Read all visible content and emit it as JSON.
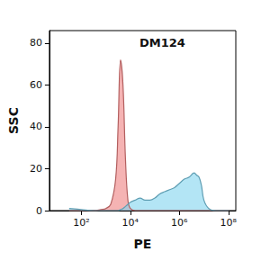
{
  "chart_data": {
    "type": "line",
    "title": "DM124",
    "x_label": "PE",
    "y_label": "SSC",
    "x": [
      32,
      100,
      316,
      631,
      1000,
      1585,
      2512,
      3162,
      3981,
      5012,
      6310,
      7943,
      10000,
      15849,
      25119,
      39811,
      63096,
      100000,
      158489,
      251189,
      398107,
      630957,
      1000000,
      1584893,
      2511886,
      3981072,
      5011872,
      6309573,
      7943282,
      10000000,
      15848932,
      31622777,
      100000000
    ],
    "series": [
      {
        "color": "#ef7f7f",
        "values": [
          0,
          0,
          0,
          0.5,
          1,
          3,
          15,
          40,
          72,
          60,
          25,
          5,
          1,
          0,
          0,
          0,
          0,
          0,
          0,
          0,
          0,
          0,
          0,
          0,
          0,
          0,
          0,
          0,
          0,
          0,
          0,
          0,
          0
        ]
      },
      {
        "color": "#7fd3ef",
        "values": [
          1,
          0.5,
          0,
          0,
          0,
          0,
          0,
          0,
          0.5,
          1,
          2,
          3,
          4,
          5,
          6,
          5,
          5,
          6,
          8,
          9,
          10,
          11,
          13,
          15,
          16,
          18,
          17,
          16,
          12,
          5,
          1,
          0,
          0
        ]
      }
    ],
    "log": "x",
    "xlim": [
      5,
      200000000
    ],
    "xticks": [
      {
        "value": 100,
        "label": "10²"
      },
      {
        "value": 10000,
        "label": "10⁴"
      },
      {
        "value": 1000000,
        "label": "10⁶"
      },
      {
        "value": 100000000,
        "label": "10⁸"
      }
    ],
    "ylim": [
      0,
      86
    ],
    "yticks": [
      0,
      20,
      40,
      60,
      80
    ],
    "grid": false
  }
}
